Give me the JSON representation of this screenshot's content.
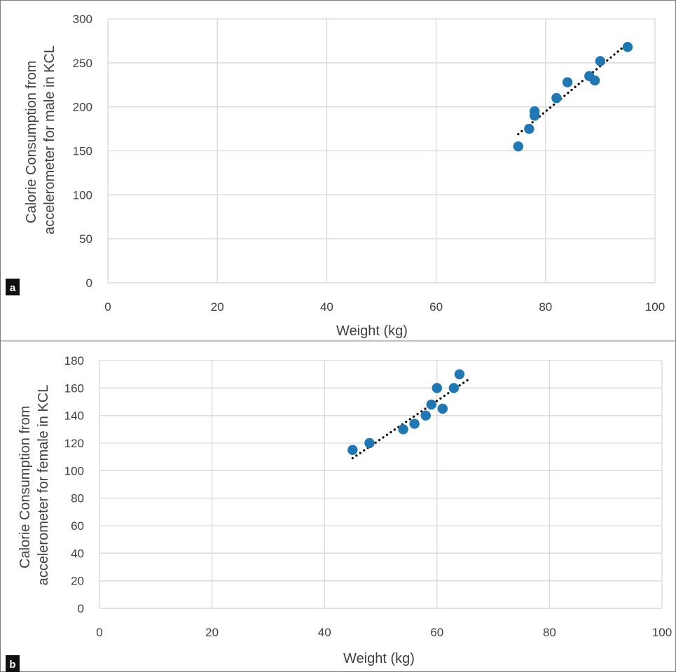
{
  "chart_data": [
    {
      "type": "scatter",
      "panel_label": "a",
      "xlabel": "Weight (kg)",
      "ylabel": "Calorie Consumption from accelerometer for male in KCL",
      "ylabel_lines": [
        "Calorie Consumption from",
        "accelerometer for male in KCL"
      ],
      "xlim": [
        0,
        100
      ],
      "ylim": [
        0,
        300
      ],
      "x_ticks": [
        0,
        20,
        40,
        60,
        80,
        100
      ],
      "y_ticks": [
        0,
        50,
        100,
        150,
        200,
        250,
        300
      ],
      "grid": true,
      "marker_color": "#1f77b4",
      "trendline": {
        "style": "dotted",
        "color": "#000000",
        "x": [
          75,
          95
        ],
        "y": [
          169,
          272
        ]
      },
      "points": [
        {
          "x": 75,
          "y": 155
        },
        {
          "x": 77,
          "y": 175
        },
        {
          "x": 78,
          "y": 190
        },
        {
          "x": 78,
          "y": 195
        },
        {
          "x": 82,
          "y": 210
        },
        {
          "x": 84,
          "y": 228
        },
        {
          "x": 88,
          "y": 235
        },
        {
          "x": 89,
          "y": 230
        },
        {
          "x": 90,
          "y": 252
        },
        {
          "x": 95,
          "y": 268
        }
      ]
    },
    {
      "type": "scatter",
      "panel_label": "b",
      "xlabel": "Weight (kg)",
      "ylabel": "Calorie Consumption from accelerometer for female in KCL",
      "ylabel_lines": [
        "Calorie Consumption from",
        "accelerometer for female in KCL"
      ],
      "xlim": [
        0,
        100
      ],
      "ylim": [
        0,
        180
      ],
      "x_ticks": [
        0,
        20,
        40,
        60,
        80,
        100
      ],
      "y_ticks": [
        0,
        20,
        40,
        60,
        80,
        100,
        120,
        140,
        160,
        180
      ],
      "grid": true,
      "marker_color": "#1f77b4",
      "trendline": {
        "style": "dotted",
        "color": "#000000",
        "x": [
          45,
          65.5
        ],
        "y": [
          109,
          166
        ]
      },
      "points": [
        {
          "x": 45,
          "y": 115
        },
        {
          "x": 48,
          "y": 120
        },
        {
          "x": 54,
          "y": 130
        },
        {
          "x": 56,
          "y": 134
        },
        {
          "x": 58,
          "y": 140
        },
        {
          "x": 59,
          "y": 148
        },
        {
          "x": 60,
          "y": 160
        },
        {
          "x": 61,
          "y": 145
        },
        {
          "x": 63,
          "y": 160
        },
        {
          "x": 64,
          "y": 170
        }
      ]
    }
  ]
}
